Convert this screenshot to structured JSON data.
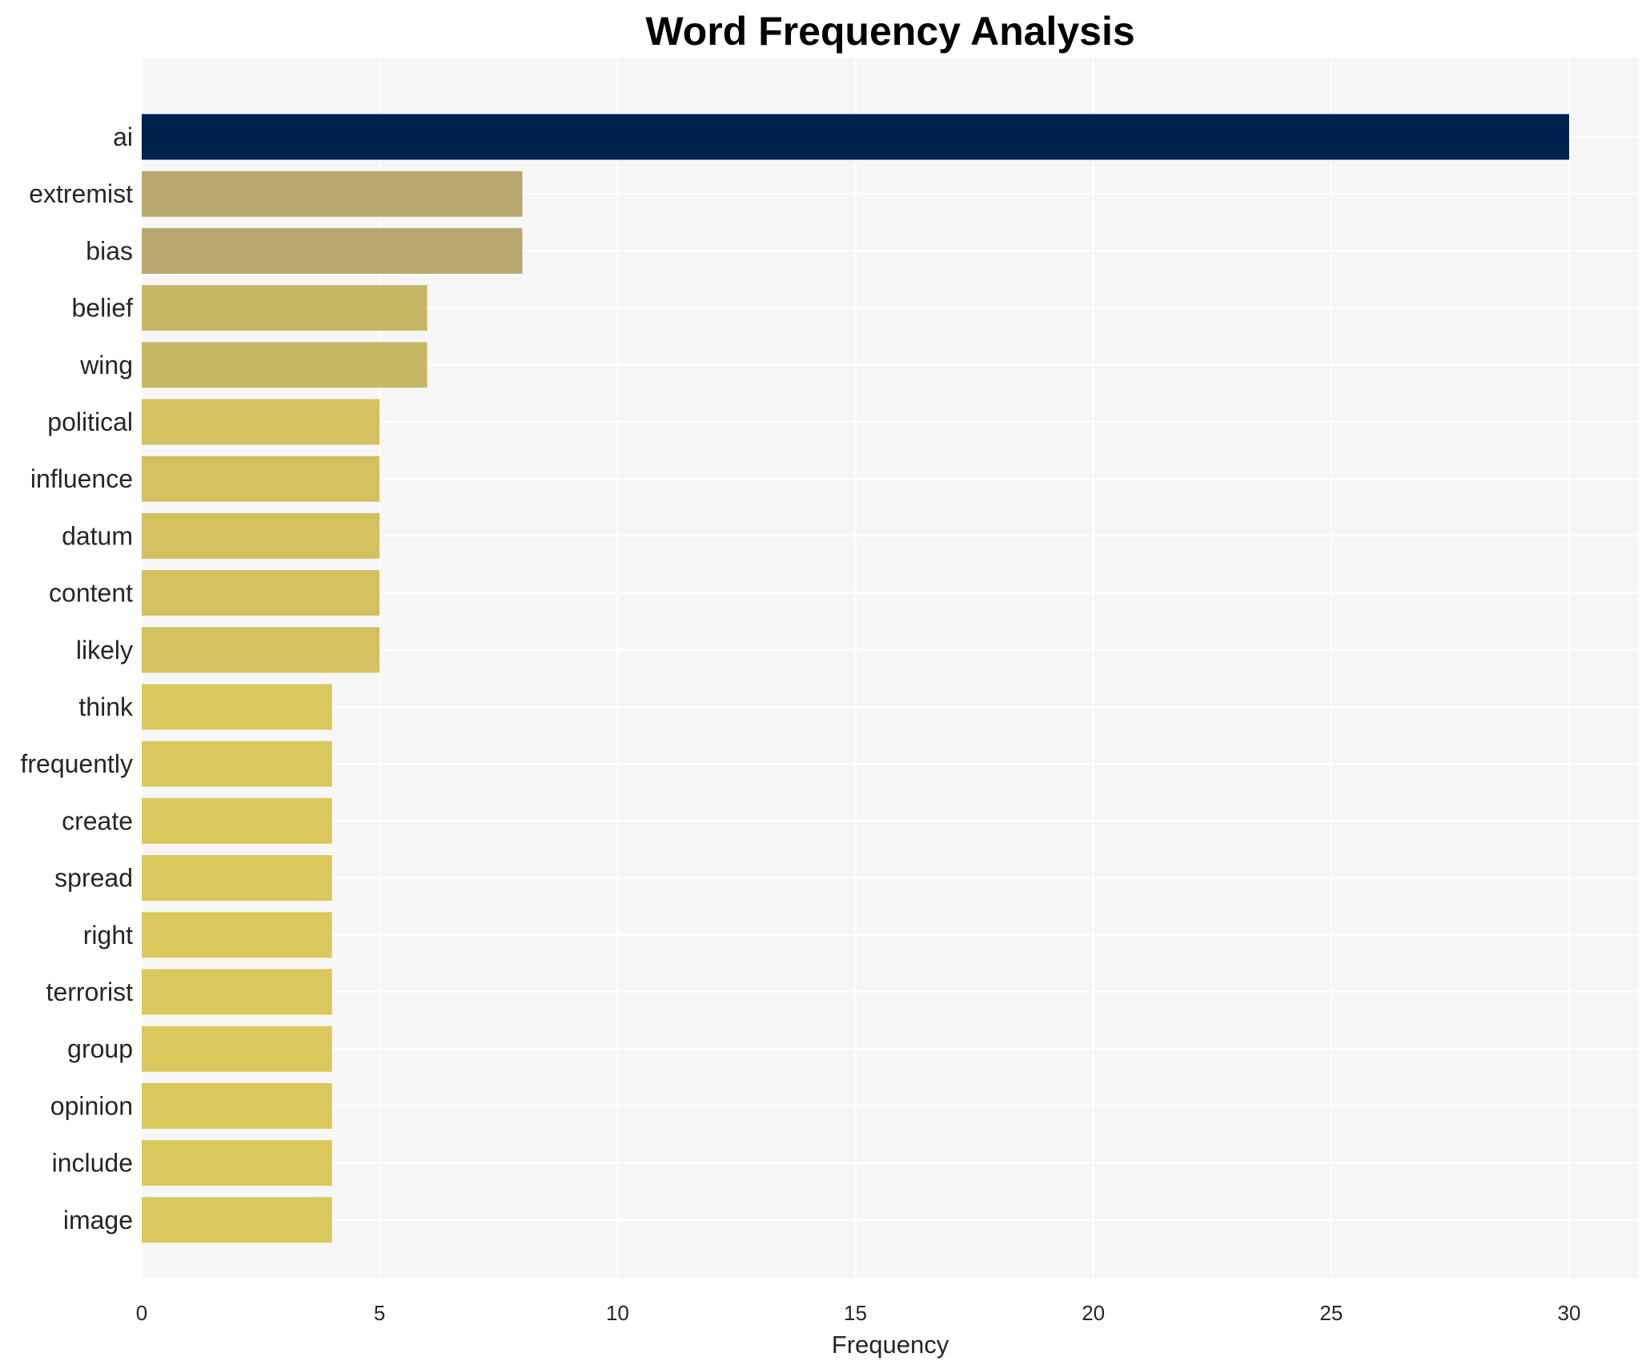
{
  "chart_data": {
    "type": "bar",
    "orientation": "horizontal",
    "title": "Word Frequency Analysis",
    "xlabel": "Frequency",
    "ylabel": "",
    "xlim": [
      0,
      31.5
    ],
    "xticks": [
      0,
      5,
      10,
      15,
      20,
      25,
      30
    ],
    "grid": true,
    "legend": "none",
    "categories": [
      "ai",
      "extremist",
      "bias",
      "belief",
      "wing",
      "political",
      "influence",
      "datum",
      "content",
      "likely",
      "think",
      "frequently",
      "create",
      "spread",
      "right",
      "terrorist",
      "group",
      "opinion",
      "include",
      "image"
    ],
    "values": [
      30,
      8,
      8,
      6,
      6,
      5,
      5,
      5,
      5,
      5,
      4,
      4,
      4,
      4,
      4,
      4,
      4,
      4,
      4,
      4
    ],
    "colors": [
      "#00224e",
      "#b8a86f",
      "#b8a86f",
      "#c8b966",
      "#c8b966",
      "#d3c160",
      "#d3c160",
      "#d3c160",
      "#d3c160",
      "#d3c160",
      "#dbc85c",
      "#dbc85c",
      "#dbc85c",
      "#dbc85c",
      "#dbc85c",
      "#dbc85c",
      "#dbc85c",
      "#dbc85c",
      "#dbc85c",
      "#dbc85c"
    ],
    "plot_background": "#f7f7f7",
    "grid_color": "#ffffff"
  }
}
